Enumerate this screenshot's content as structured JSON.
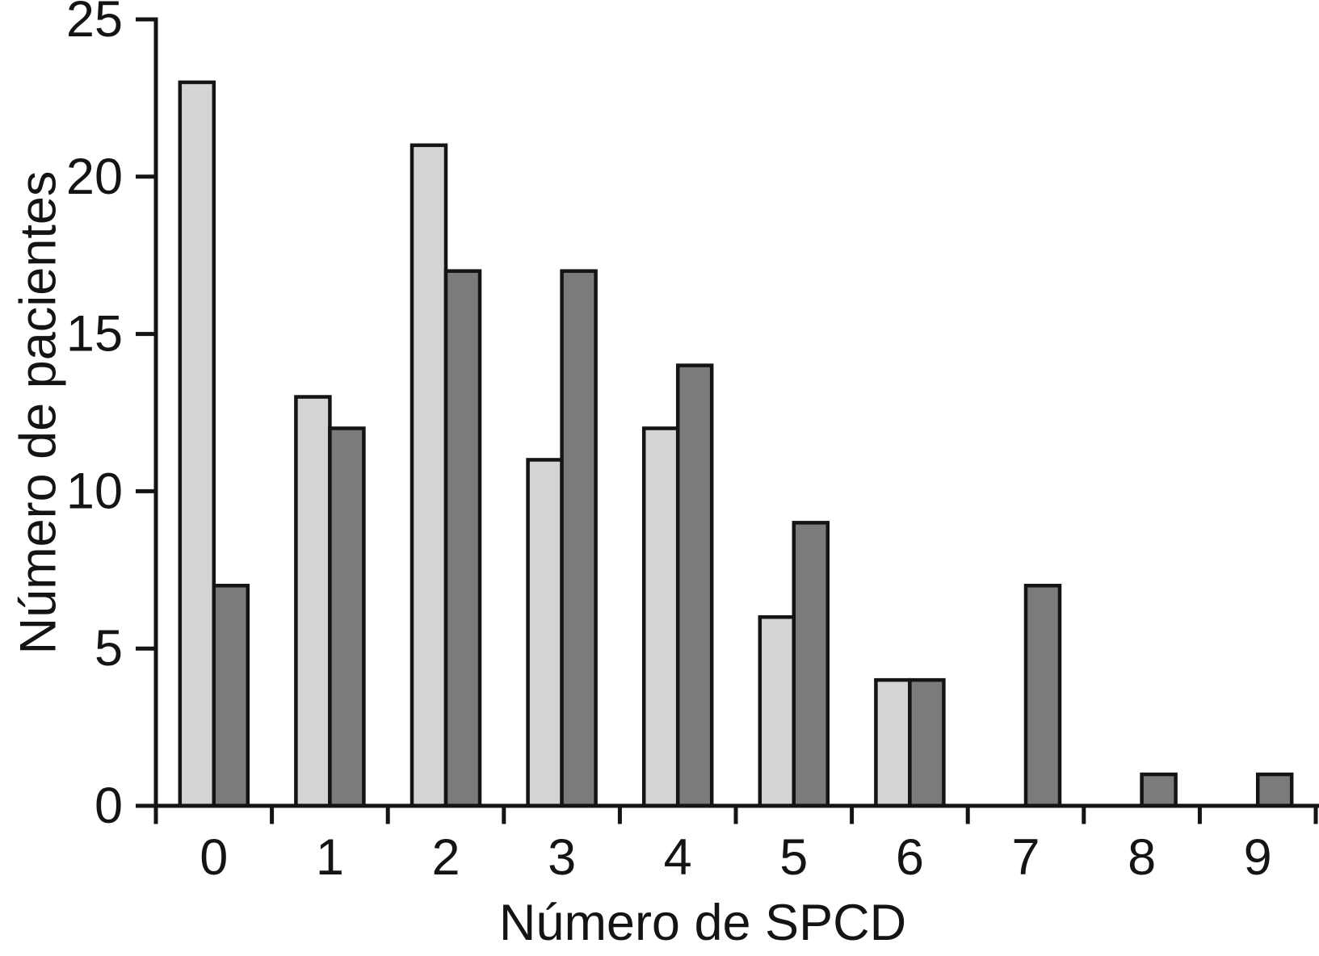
{
  "chart_data": {
    "type": "bar",
    "title": "",
    "xlabel": "Número de SPCD",
    "ylabel": "Número de pacientes",
    "categories": [
      "0",
      "1",
      "2",
      "3",
      "4",
      "5",
      "6",
      "7",
      "8",
      "9"
    ],
    "series": [
      {
        "name": "light-gray-series",
        "color": "#d4d4d4",
        "values": [
          23,
          13,
          21,
          11,
          12,
          6,
          4,
          0,
          0,
          0
        ]
      },
      {
        "name": "dark-gray-series",
        "color": "#7b7b7b",
        "values": [
          7,
          12,
          17,
          17,
          14,
          9,
          4,
          7,
          1,
          1
        ]
      }
    ],
    "ylim": [
      0,
      25
    ],
    "yticks": [
      0,
      5,
      10,
      15,
      20,
      25
    ],
    "grid": false,
    "legend": "none",
    "bar_border_color": "#141414",
    "axis_color": "#141414",
    "background_color": "#ffffff"
  }
}
